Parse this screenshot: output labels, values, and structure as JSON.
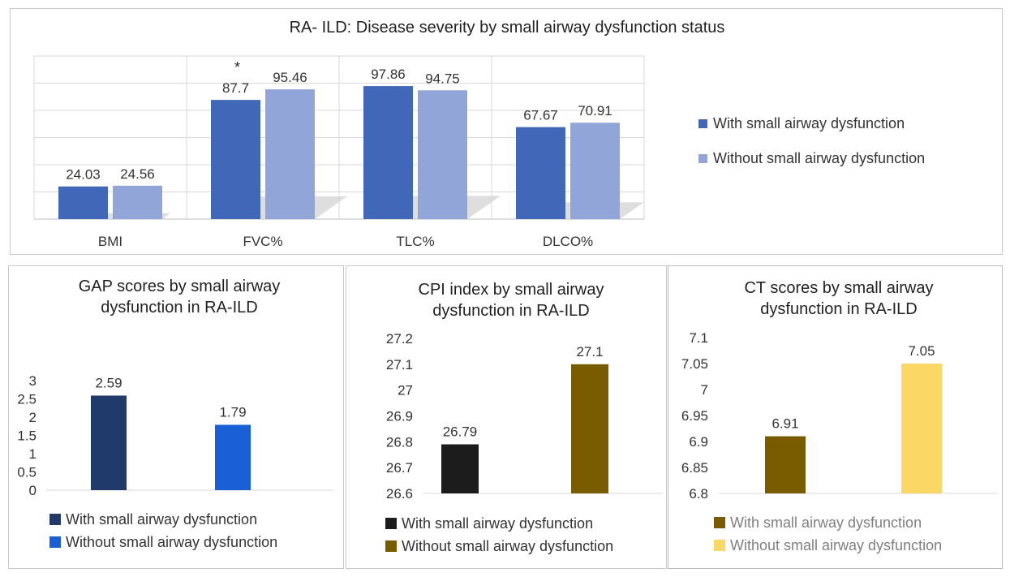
{
  "top_chart": {
    "title": "RA-  ILD: Disease severity by small airway dysfunction status",
    "legend": [
      "With small airway dysfunction",
      "Without small airway dysfunction"
    ]
  },
  "gap_chart": {
    "title": "GAP scores by small airway dysfunction in RA-ILD",
    "legend": [
      "With small airway dysfunction",
      "Without small airway dysfunction"
    ]
  },
  "cpi_chart": {
    "title": "CPI index by small airway dysfunction in RA-ILD",
    "legend": [
      "With small airway dysfunction",
      "Without small airway dysfunction"
    ]
  },
  "ct_chart": {
    "title": "CT scores by small airway dysfunction in RA-ILD",
    "legend": [
      "With small airway dysfunction",
      "Without small airway dysfunction"
    ]
  },
  "chart_data": [
    {
      "type": "bar",
      "title": "RA-  ILD: Disease severity by small airway dysfunction status",
      "categories": [
        "BMI",
        "FVC%",
        "TLC%",
        "DLCO%"
      ],
      "series": [
        {
          "name": "With small airway dysfunction",
          "values": [
            24.03,
            87.7,
            97.86,
            67.67
          ],
          "color": "#4168b8"
        },
        {
          "name": "Without small airway dysfunction",
          "values": [
            24.56,
            95.46,
            94.75,
            70.91
          ],
          "color": "#92a5d9"
        }
      ],
      "annotations": [
        {
          "category": "FVC%",
          "text": "*"
        }
      ],
      "ylim": [
        0,
        120
      ],
      "grid": true,
      "y_tick_labels_shown": false,
      "legend_position": "right"
    },
    {
      "type": "bar",
      "title": "GAP scores by small airway dysfunction in RA-ILD",
      "categories": [
        "With small airway dysfunction",
        "Without small airway dysfunction"
      ],
      "values": [
        2.59,
        1.79
      ],
      "colors": [
        "#1f3a6b",
        "#1a5fd6"
      ],
      "ylim": [
        0,
        3
      ],
      "yticks": [
        "0",
        "0.5",
        "1",
        "1.5",
        "2",
        "2.5",
        "3"
      ],
      "legend_position": "bottom"
    },
    {
      "type": "bar",
      "title": "CPI index by small airway dysfunction in RA-ILD",
      "categories": [
        "With small airway dysfunction",
        "Without small airway dysfunction"
      ],
      "values": [
        26.79,
        27.1
      ],
      "colors": [
        "#1c1c1c",
        "#7a5c00"
      ],
      "ylim": [
        26.6,
        27.2
      ],
      "yticks": [
        "26.6",
        "26.7",
        "26.8",
        "26.9",
        "27",
        "27.1",
        "27.2"
      ],
      "legend_position": "bottom"
    },
    {
      "type": "bar",
      "title": "CT scores by small airway dysfunction in RA-ILD",
      "categories": [
        "With small airway dysfunction",
        "Without small airway dysfunction"
      ],
      "values": [
        6.91,
        7.05
      ],
      "colors": [
        "#7a5c00",
        "#fbd865"
      ],
      "ylim": [
        6.8,
        7.1
      ],
      "yticks": [
        "6.8",
        "6.85",
        "6.9",
        "6.95",
        "7",
        "7.05",
        "7.1"
      ],
      "legend_position": "bottom"
    }
  ]
}
